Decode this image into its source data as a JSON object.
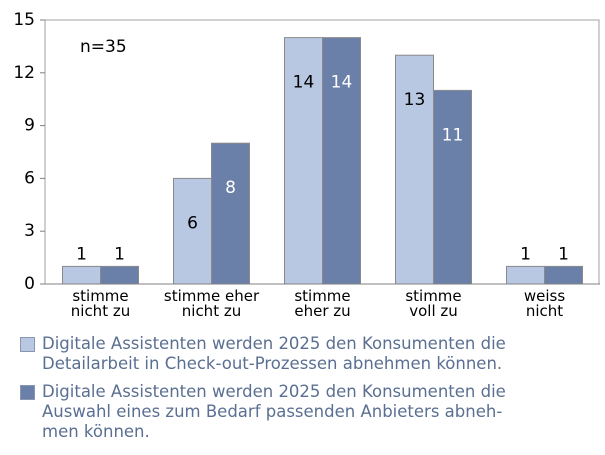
{
  "chart_data": {
    "type": "bar",
    "annotation": "n=35",
    "categories": [
      "stimme\nnicht zu",
      "stimme eher\nnicht zu",
      "stimme\neher zu",
      "stimme\nvoll zu",
      "weiss\nnicht"
    ],
    "series": [
      {
        "name": "Digitale Assistenten werden 2025 den Konsumenten die\nDetailarbeit in Check-out-Prozessen abnehmen können.",
        "color": "#b8c8e2",
        "label_color": "#000000",
        "values": [
          1,
          6,
          14,
          13,
          1
        ]
      },
      {
        "name": "Digitale Assistenten werden 2025 den Konsumenten die\nAuswahl eines zum Bedarf passenden Anbieters abneh-\nmen können.",
        "color": "#6a80a8",
        "label_color": "#ffffff",
        "values": [
          1,
          8,
          14,
          11,
          1
        ]
      }
    ],
    "ylim": [
      0,
      15
    ],
    "yticks": [
      0,
      3,
      6,
      9,
      12,
      15
    ],
    "grid": false
  }
}
